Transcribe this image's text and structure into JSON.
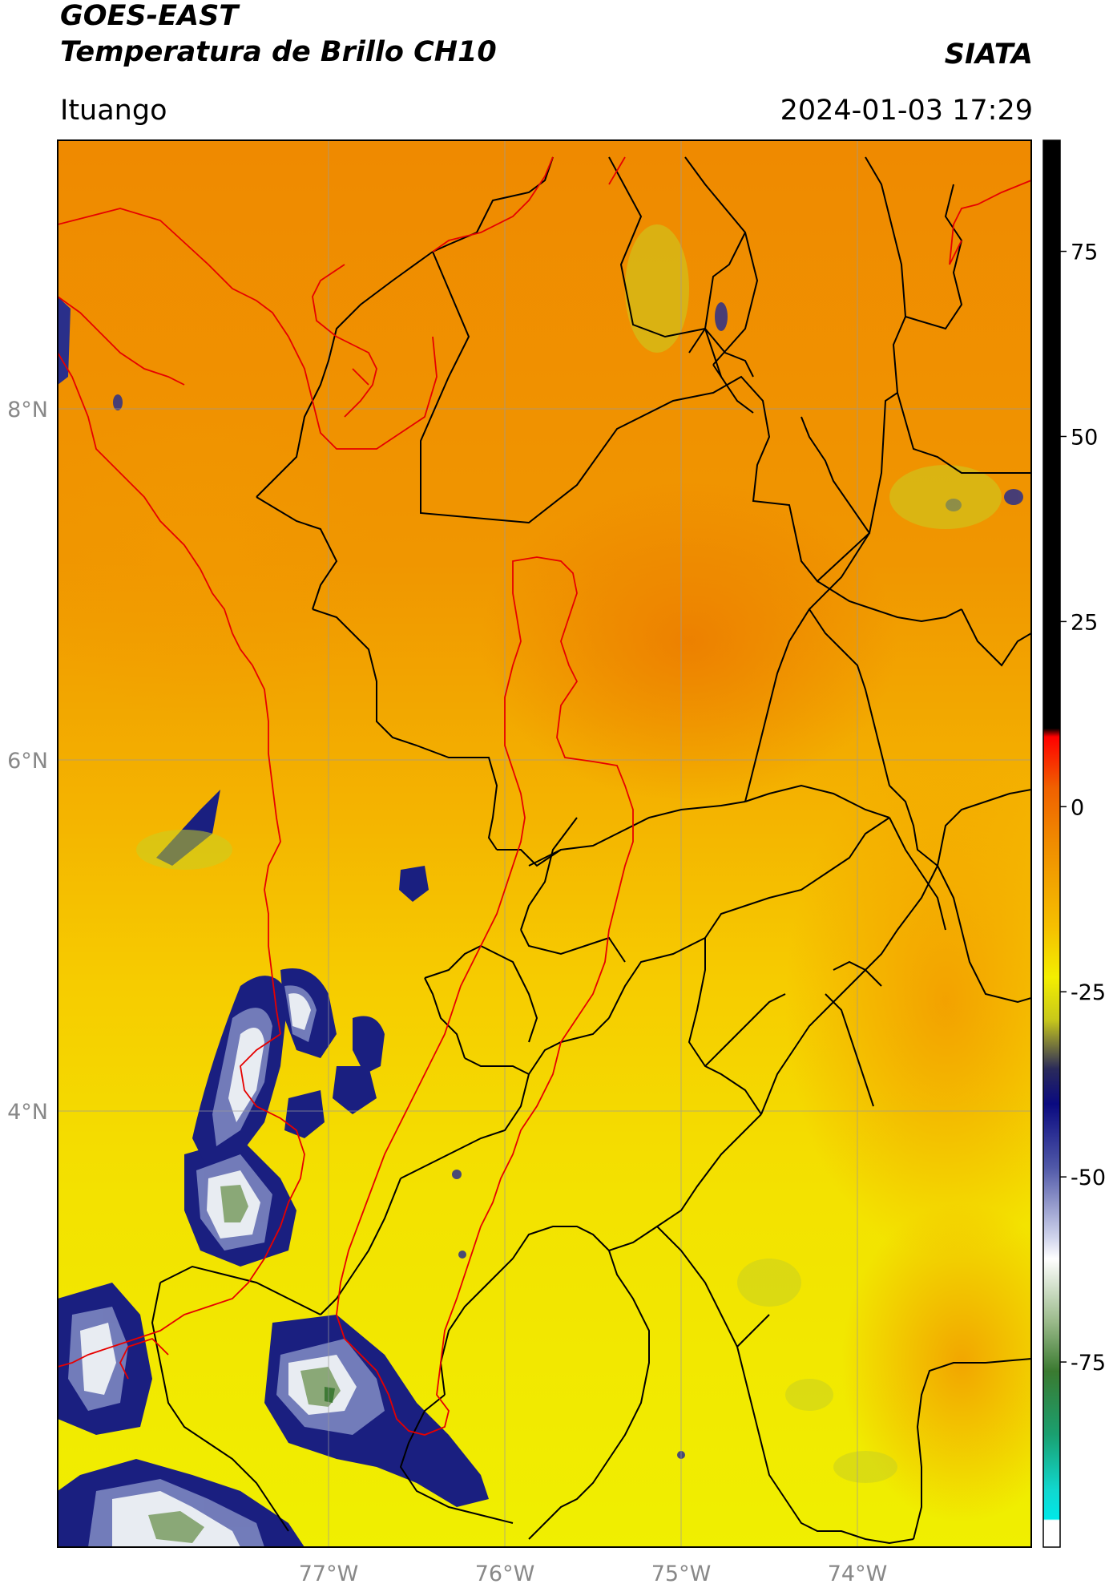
{
  "header": {
    "title_line1": "GOES-EAST",
    "title_line2": "Temperatura de Brillo CH10",
    "organization": "SIATA",
    "location": "Ituango",
    "timestamp": "2024-01-03 17:29"
  },
  "map": {
    "lon_ticks": [
      "77°W",
      "76°W",
      "75°W",
      "74°W"
    ],
    "lat_ticks": [
      "8°N",
      "6°N",
      "4°N"
    ],
    "colors": {
      "warm": "#f08c00",
      "mid": "#f7c400",
      "cool": "#f2f000",
      "cloud_dark": "#1a1f80",
      "cloud_light": "#e8ecf2",
      "cloud_green": "#7ea06a",
      "border_red": "#e60000",
      "border_black": "#000000"
    }
  },
  "colorbar": {
    "ticks": [
      "75",
      "50",
      "25",
      "0",
      "-25",
      "-50",
      "-75"
    ],
    "tick_values": [
      75,
      50,
      25,
      0,
      -25,
      -50,
      -75
    ],
    "range": [
      -100,
      90
    ]
  }
}
